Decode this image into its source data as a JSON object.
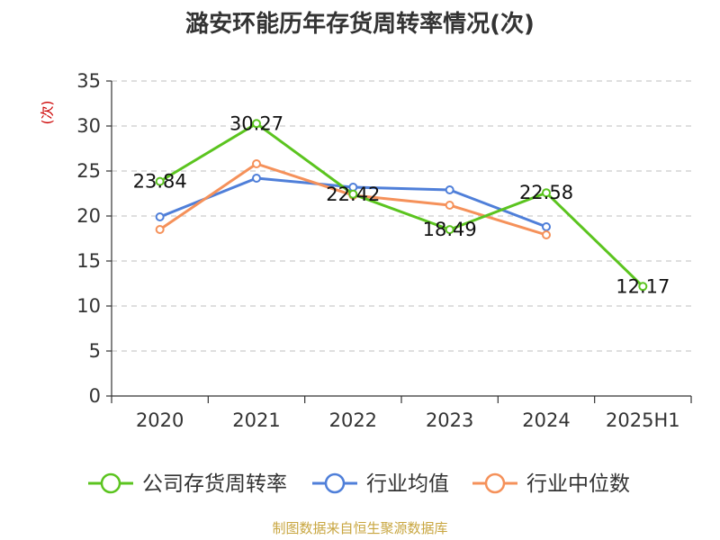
{
  "chart_data": {
    "type": "line",
    "title": "潞安环能历年存货周转率情况(次)",
    "ylabel": "(次)",
    "categories": [
      "2020",
      "2021",
      "2022",
      "2023",
      "2024",
      "2025H1"
    ],
    "ylim": [
      0,
      35
    ],
    "yticks": [
      0,
      5,
      10,
      15,
      20,
      25,
      30,
      35
    ],
    "grid": true,
    "legend_position": "bottom",
    "series": [
      {
        "name": "公司存货周转率",
        "color": "#5bc41f",
        "values": [
          23.84,
          30.27,
          22.42,
          18.49,
          22.58,
          12.17
        ],
        "labels": [
          "23.84",
          "30.27",
          "22.42",
          "18.49",
          "22.58",
          "12.17"
        ]
      },
      {
        "name": "行业均值",
        "color": "#4f7fd9",
        "values": [
          19.9,
          24.2,
          23.2,
          22.9,
          18.8,
          null
        ]
      },
      {
        "name": "行业中位数",
        "color": "#f5915a",
        "values": [
          18.5,
          25.8,
          22.3,
          21.2,
          17.9,
          null
        ]
      }
    ]
  },
  "source": "制图数据来自恒生聚源数据库"
}
